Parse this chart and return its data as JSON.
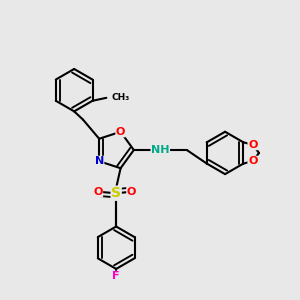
{
  "bg_color": "#e8e8e8",
  "bond_color": "#000000",
  "bond_width": 1.5,
  "doff": 0.07,
  "atom_colors": {
    "N": "#0000cc",
    "O": "#ff0000",
    "S": "#cccc00",
    "F": "#ff00cc",
    "NH": "#00aa88",
    "C": "#000000"
  },
  "fs": 8,
  "fs_small": 7
}
